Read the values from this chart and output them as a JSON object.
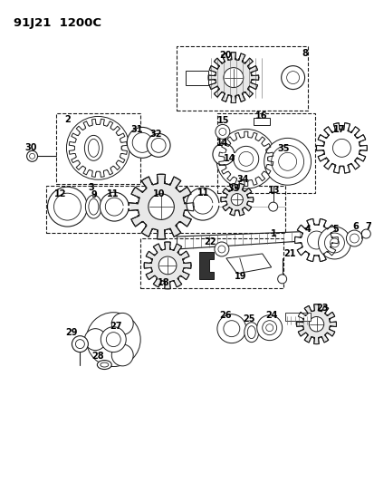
{
  "title": "91J21  1200C",
  "bg_color": "#ffffff",
  "line_color": "#1a1a1a",
  "figsize": [
    4.14,
    5.33
  ],
  "dpi": 100
}
